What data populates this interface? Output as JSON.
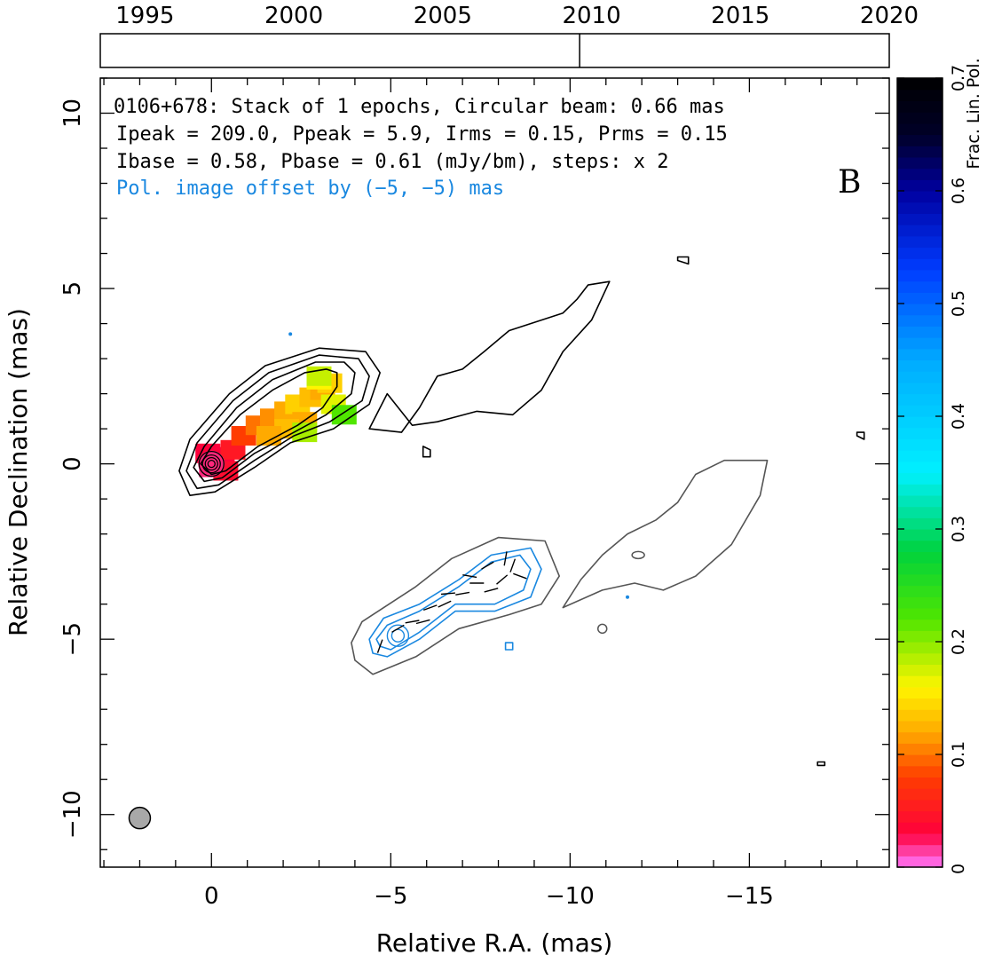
{
  "chart_data": {
    "type": "contour",
    "source": "0106+678",
    "annotation_lines": [
      "0106+678: Stack of 1 epochs, Circular beam: 0.66 mas",
      "Ipeak = 209.0, Ppeak = 5.9, Irms = 0.15, Prms = 0.15",
      "Ibase = 0.58, Pbase = 0.61 (mJy/bm), steps: x 2"
    ],
    "offset_note": "Pol. image offset by (−5, −5) mas",
    "panel_label": "B",
    "xlabel": "Relative R.A. (mas)",
    "ylabel": "Relative Declination (mas)",
    "xlim": [
      3.1,
      -18.9
    ],
    "ylim": [
      -11.5,
      11.0
    ],
    "x_ticks": [
      0,
      -5,
      -10,
      -15
    ],
    "x_tick_labels": [
      "0",
      "−5",
      "−10",
      "−15"
    ],
    "y_ticks": [
      10,
      5,
      0,
      -5,
      -10
    ],
    "y_tick_labels": [
      "10",
      "5",
      "0",
      "−5",
      "−10"
    ],
    "time_axis": {
      "range": [
        1993.5,
        2020.0
      ],
      "ticks": [
        1995,
        2000,
        2005,
        2010,
        2015,
        2020
      ],
      "tick_labels": [
        "1995",
        "2000",
        "2005",
        "2010",
        "2015",
        "2020"
      ],
      "epochs": [
        2009.6
      ]
    },
    "beam": {
      "x": 2.0,
      "y": -10.1,
      "diameter_mas": 0.66
    },
    "colorbar": {
      "label": "Frac. Lin. Pol.",
      "range": [
        0,
        0.7
      ],
      "ticks": [
        0,
        0.1,
        0.2,
        0.3,
        0.4,
        0.5,
        0.6,
        0.7
      ],
      "tick_labels": [
        "0",
        "0.1",
        "0.2",
        "0.3",
        "0.4",
        "0.5",
        "0.6",
        "0.7"
      ]
    },
    "colors": {
      "stokes_i_contours": "#000000",
      "offset_i_contour": "#555555",
      "pol_contours": "#1a88e0",
      "beam_fill": "#a8a8a8"
    },
    "stokes_i_contours": [
      [
        [
          0.6,
          -0.9
        ],
        [
          -0.1,
          -0.8
        ],
        [
          -1.2,
          -0.1
        ],
        [
          -2.2,
          0.6
        ],
        [
          -3.4,
          1.0
        ],
        [
          -4.4,
          1.7
        ],
        [
          -4.7,
          2.6
        ],
        [
          -4.3,
          3.2
        ],
        [
          -3.0,
          3.3
        ],
        [
          -1.5,
          2.8
        ],
        [
          -0.5,
          2.0
        ],
        [
          0.6,
          0.7
        ],
        [
          0.9,
          -0.2
        ],
        [
          0.6,
          -0.9
        ]
      ],
      [
        [
          0.4,
          -0.7
        ],
        [
          -0.2,
          -0.6
        ],
        [
          -1.2,
          0.1
        ],
        [
          -2.3,
          0.8
        ],
        [
          -3.3,
          1.2
        ],
        [
          -4.2,
          1.8
        ],
        [
          -4.4,
          2.5
        ],
        [
          -4.1,
          3.0
        ],
        [
          -3.0,
          3.1
        ],
        [
          -1.6,
          2.6
        ],
        [
          -0.6,
          1.8
        ],
        [
          0.4,
          0.6
        ],
        [
          0.7,
          -0.2
        ],
        [
          0.4,
          -0.7
        ]
      ],
      [
        [
          0.2,
          -0.5
        ],
        [
          -0.3,
          -0.4
        ],
        [
          -1.2,
          0.3
        ],
        [
          -2.3,
          0.9
        ],
        [
          -3.2,
          1.4
        ],
        [
          -3.9,
          2.0
        ],
        [
          -4.0,
          2.6
        ],
        [
          -3.7,
          2.9
        ],
        [
          -2.9,
          2.9
        ],
        [
          -1.7,
          2.4
        ],
        [
          -0.7,
          1.6
        ],
        [
          0.2,
          0.5
        ],
        [
          0.5,
          -0.1
        ],
        [
          0.2,
          -0.5
        ]
      ],
      [
        [
          0.0,
          -0.3
        ],
        [
          -0.4,
          -0.2
        ],
        [
          -1.3,
          0.5
        ],
        [
          -2.4,
          1.1
        ],
        [
          -3.1,
          1.6
        ],
        [
          -3.5,
          2.2
        ],
        [
          -3.5,
          2.6
        ],
        [
          -3.2,
          2.7
        ],
        [
          -2.6,
          2.6
        ],
        [
          -1.7,
          2.1
        ],
        [
          -0.8,
          1.4
        ],
        [
          0.0,
          0.5
        ],
        [
          0.3,
          0.0
        ],
        [
          0.0,
          -0.3
        ]
      ],
      [
        [
          -4.9,
          2.0
        ],
        [
          -4.4,
          1.0
        ],
        [
          -5.3,
          0.9
        ],
        [
          -5.8,
          1.6
        ],
        [
          -6.3,
          2.5
        ],
        [
          -7.0,
          2.7
        ],
        [
          -7.6,
          3.2
        ],
        [
          -8.3,
          3.8
        ],
        [
          -9.8,
          4.3
        ],
        [
          -10.2,
          4.7
        ],
        [
          -10.5,
          5.1
        ],
        [
          -11.1,
          5.2
        ],
        [
          -10.6,
          4.1
        ],
        [
          -9.8,
          3.2
        ],
        [
          -9.2,
          2.1
        ],
        [
          -8.4,
          1.4
        ],
        [
          -7.4,
          1.5
        ],
        [
          -6.3,
          1.2
        ],
        [
          -5.6,
          1.1
        ],
        [
          -4.9,
          2.0
        ]
      ],
      [
        [
          -5.9,
          0.5
        ],
        [
          -6.1,
          0.4
        ],
        [
          -6.1,
          0.2
        ],
        [
          -5.9,
          0.2
        ],
        [
          -5.9,
          0.5
        ]
      ],
      [
        [
          -13.0,
          5.9
        ],
        [
          -13.3,
          5.9
        ],
        [
          -13.3,
          5.7
        ],
        [
          -13.0,
          5.8
        ],
        [
          -13.0,
          5.9
        ]
      ],
      [
        [
          -18.0,
          0.9
        ],
        [
          -18.2,
          0.9
        ],
        [
          -18.2,
          0.7
        ],
        [
          -18.0,
          0.8
        ],
        [
          -18.0,
          0.9
        ]
      ],
      [
        [
          -16.9,
          -8.5
        ],
        [
          -17.1,
          -8.5
        ],
        [
          -17.1,
          -8.6
        ],
        [
          -16.9,
          -8.6
        ],
        [
          -16.9,
          -8.5
        ]
      ]
    ],
    "offset_i_contour": [
      [
        [
          -4.0,
          -5.6
        ],
        [
          -4.5,
          -6.0
        ],
        [
          -5.7,
          -5.5
        ],
        [
          -6.9,
          -4.7
        ],
        [
          -8.3,
          -4.3
        ],
        [
          -9.2,
          -4.0
        ],
        [
          -9.7,
          -3.2
        ],
        [
          -9.3,
          -2.2
        ],
        [
          -8.0,
          -2.1
        ],
        [
          -6.7,
          -2.7
        ],
        [
          -5.7,
          -3.5
        ],
        [
          -4.2,
          -4.5
        ],
        [
          -3.9,
          -5.1
        ],
        [
          -4.0,
          -5.6
        ]
      ],
      [
        [
          -9.8,
          -4.1
        ],
        [
          -10.3,
          -3.3
        ],
        [
          -10.9,
          -2.6
        ],
        [
          -11.6,
          -2.0
        ],
        [
          -12.4,
          -1.6
        ],
        [
          -13.0,
          -1.1
        ],
        [
          -13.5,
          -0.3
        ],
        [
          -14.3,
          0.1
        ],
        [
          -15.5,
          0.1
        ],
        [
          -15.3,
          -0.9
        ],
        [
          -14.5,
          -2.3
        ],
        [
          -13.5,
          -3.2
        ],
        [
          -12.6,
          -3.6
        ],
        [
          -11.8,
          -3.4
        ],
        [
          -10.9,
          -3.6
        ],
        [
          -9.8,
          -4.1
        ]
      ]
    ],
    "pol_contours": [
      [
        [
          -4.5,
          -5.4
        ],
        [
          -4.9,
          -5.5
        ],
        [
          -5.8,
          -5.0
        ],
        [
          -6.8,
          -4.2
        ],
        [
          -7.9,
          -4.2
        ],
        [
          -8.9,
          -3.8
        ],
        [
          -9.2,
          -3.0
        ],
        [
          -8.9,
          -2.4
        ],
        [
          -7.8,
          -2.6
        ],
        [
          -6.9,
          -3.3
        ],
        [
          -5.8,
          -4.0
        ],
        [
          -4.8,
          -4.4
        ],
        [
          -4.4,
          -5.0
        ],
        [
          -4.5,
          -5.4
        ]
      ],
      [
        [
          -4.7,
          -5.2
        ],
        [
          -5.0,
          -5.3
        ],
        [
          -5.8,
          -4.8
        ],
        [
          -6.8,
          -4.0
        ],
        [
          -7.9,
          -4.0
        ],
        [
          -8.7,
          -3.6
        ],
        [
          -8.9,
          -3.0
        ],
        [
          -8.6,
          -2.6
        ],
        [
          -7.8,
          -2.8
        ],
        [
          -6.9,
          -3.5
        ],
        [
          -5.8,
          -4.2
        ],
        [
          -4.9,
          -4.6
        ],
        [
          -4.6,
          -5.0
        ],
        [
          -4.7,
          -5.2
        ]
      ],
      [
        [
          -8.2,
          -5.1
        ],
        [
          -8.4,
          -5.1
        ],
        [
          -8.4,
          -5.3
        ],
        [
          -8.2,
          -5.3
        ],
        [
          -8.2,
          -5.1
        ]
      ]
    ],
    "pol_core": {
      "x": -5.2,
      "y": -4.9
    },
    "evpa_sticks": [
      [
        -4.7,
        -5.2,
        70
      ],
      [
        -5.2,
        -4.7,
        30
      ],
      [
        -5.6,
        -4.5,
        10
      ],
      [
        -6.1,
        -4.1,
        20
      ],
      [
        -6.6,
        -3.7,
        5
      ],
      [
        -7.0,
        -3.7,
        10
      ],
      [
        -7.4,
        -3.4,
        0
      ],
      [
        -7.8,
        -3.6,
        15
      ],
      [
        -8.1,
        -3.3,
        40
      ],
      [
        -8.4,
        -2.9,
        70
      ],
      [
        -8.6,
        -3.2,
        -20
      ],
      [
        -7.7,
        -2.9,
        30
      ],
      [
        -7.2,
        -3.2,
        -10
      ],
      [
        -6.5,
        -4.0,
        25
      ],
      [
        -5.9,
        -4.5,
        15
      ],
      [
        -8.2,
        -2.7,
        80
      ]
    ],
    "fracpol_map": [
      [
        0.1,
        0.3,
        0.03
      ],
      [
        -0.3,
        0.2,
        0.03
      ],
      [
        0.0,
        -0.1,
        0.02
      ],
      [
        -0.4,
        -0.2,
        0.04
      ],
      [
        -0.6,
        0.4,
        0.05
      ],
      [
        -0.9,
        0.8,
        0.08
      ],
      [
        -1.3,
        1.1,
        0.1
      ],
      [
        -1.7,
        1.3,
        0.11
      ],
      [
        -2.1,
        1.5,
        0.12
      ],
      [
        -2.4,
        1.7,
        0.14
      ],
      [
        -2.8,
        1.9,
        0.13
      ],
      [
        -3.1,
        2.1,
        0.12
      ],
      [
        -3.3,
        2.3,
        0.14
      ],
      [
        -3.0,
        2.4,
        0.16
      ],
      [
        -3.4,
        1.7,
        0.17
      ],
      [
        -2.6,
        1.2,
        0.12
      ],
      [
        -2.1,
        1.0,
        0.13
      ],
      [
        -1.6,
        0.8,
        0.12
      ],
      [
        -2.6,
        0.9,
        0.19
      ],
      [
        -3.7,
        1.4,
        0.22
      ],
      [
        -3.0,
        2.5,
        0.18
      ]
    ]
  }
}
